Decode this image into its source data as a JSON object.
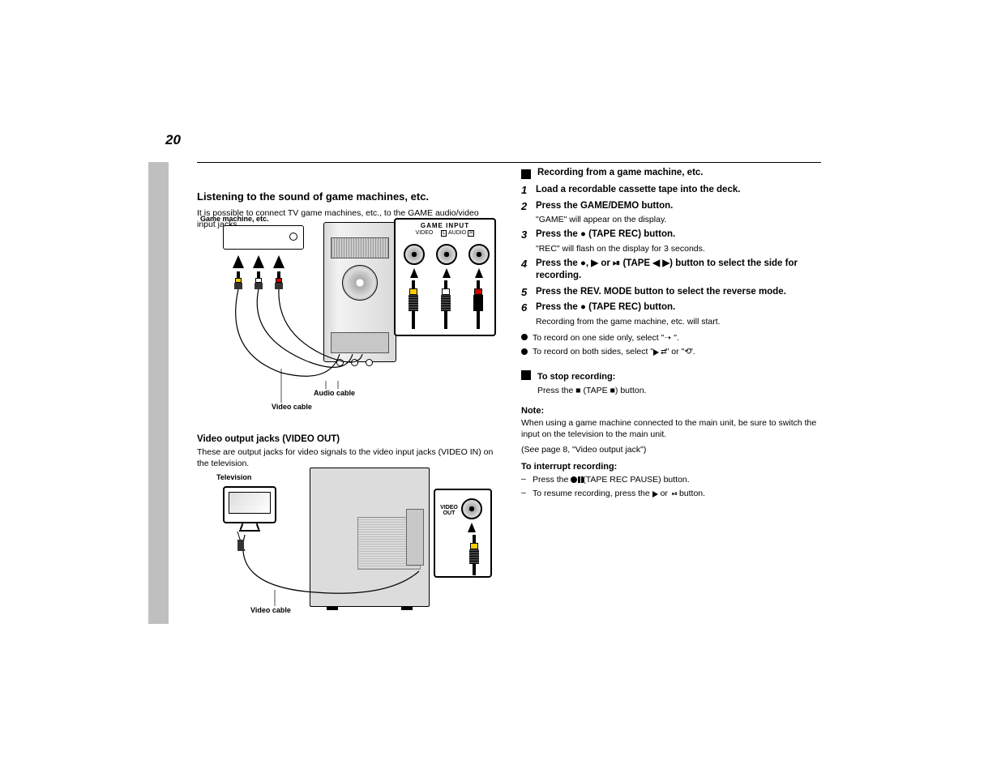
{
  "colors": {
    "background": "#ffffff",
    "text": "#000000",
    "sidebar": "#bfbfbf",
    "rule": "#000000",
    "unit_body": "#dcdcdc",
    "plug_yellow": "#ffcc00",
    "plug_white": "#ffffff",
    "plug_red": "#cc0000"
  },
  "fonts": {
    "body_pt": 10.5,
    "heading_pt": 13,
    "caption_pt": 9,
    "pagenum_pt": 17
  },
  "page_number": "20",
  "left": {
    "section_title": "Listening to the sound of game machines, etc.",
    "p1": "It is possible to connect TV game machines, etc., to the GAME audio/video input jacks.",
    "diagram1": {
      "caption_external": "Game machine, etc.",
      "caption_audio_cable": "Audio cable",
      "caption_video_cable": "Video cable",
      "inset_title": "GAME INPUT",
      "inset_sub_video": "VIDEO",
      "inset_sub_l": "L",
      "inset_sub_audio": "AUDIO",
      "inset_sub_r": "R"
    },
    "video_out_heading": "Video output jacks (VIDEO OUT)",
    "p2": "These are output jacks for video signals to the video input jacks (VIDEO IN) on the television.",
    "diagram2": {
      "caption_tv": "Television",
      "caption_video_cable": "Video cable",
      "inset_label": "VIDEO\nOUT"
    }
  },
  "right": {
    "rec_game_heading": "Recording from a game machine, etc.",
    "steps": [
      {
        "n": "1",
        "t": "Load a recordable cassette tape into the deck."
      },
      {
        "n": "2",
        "t": "Press the GAME/DEMO button.",
        "sub": "\"GAME\" will appear on the display."
      },
      {
        "n": "3",
        "t": "Press the ● (TAPE REC) button.",
        "sub": "\"REC\" will flash on the display for 3 seconds."
      },
      {
        "n": "4",
        "t": "Press the ●, ▶ or ⏯ (TAPE ◀ ▶) button to select the side for recording."
      },
      {
        "n": "5",
        "t": "Press the REV. MODE button to select the reverse mode."
      },
      {
        "n": "6",
        "t": "Press the ● (TAPE REC) button.",
        "sub": "Recording from the game machine, etc. will start."
      }
    ],
    "stop_heading": "To stop recording:",
    "stop_body": "Press the ■ (TAPE ■) button.",
    "note_title": "Note:",
    "note_body": "When using a game machine connected to the main unit, be sure to switch the input on the television to the main unit.",
    "cross_ref": "(See page 8, \"Video output jack\")",
    "interrupt_heading": "To interrupt recording:",
    "interrupt_items": [
      "Press the ●❙❙ (TAPE REC PAUSE) button.",
      "To resume recording, press the ▶ or ⏯ button."
    ]
  }
}
